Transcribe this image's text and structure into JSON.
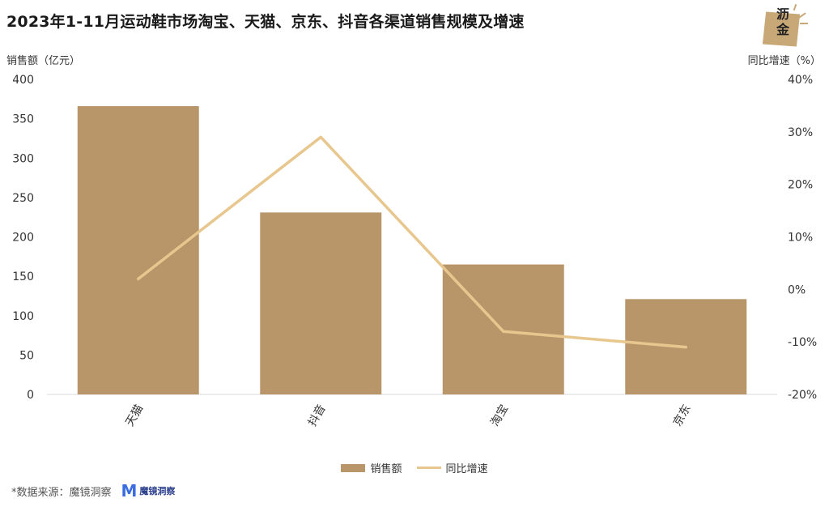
{
  "title": "2023年1-11月运动鞋市场淘宝、天猫、京东、抖音各渠道销售规模及增速",
  "logo": {
    "text": "沥金"
  },
  "left_axis_title": "销售额（亿元）",
  "right_axis_title": "同比增速（%）",
  "legend": {
    "bar_label": "销售额",
    "line_label": "同比增速"
  },
  "footer": {
    "source": "*数据来源：魔镜洞察",
    "brand_name": "魔镜洞察",
    "brand_letter": "M"
  },
  "colors": {
    "bar": "#b8966a",
    "line": "#e8c78e",
    "grid": "#d9d9d9"
  },
  "chart_data": {
    "type": "bar",
    "categories": [
      "天猫",
      "抖音",
      "淘宝",
      "京东"
    ],
    "series": [
      {
        "name": "销售额",
        "type": "bar",
        "axis": "left",
        "values": [
          366,
          231,
          165,
          121
        ]
      },
      {
        "name": "同比增速",
        "type": "line",
        "axis": "right",
        "values": [
          2,
          29,
          -8,
          -11
        ]
      }
    ],
    "ylabel": "销售额（亿元）",
    "ylim": [
      0,
      400
    ],
    "yticks": [
      "0",
      "50",
      "100",
      "150",
      "200",
      "250",
      "300",
      "350",
      "400"
    ],
    "y2label": "同比增速（%）",
    "y2lim": [
      -20,
      40
    ],
    "y2ticks": [
      "-20%",
      "-10%",
      "0%",
      "10%",
      "20%",
      "30%",
      "40%"
    ],
    "grid": false,
    "legend_position": "bottom"
  }
}
